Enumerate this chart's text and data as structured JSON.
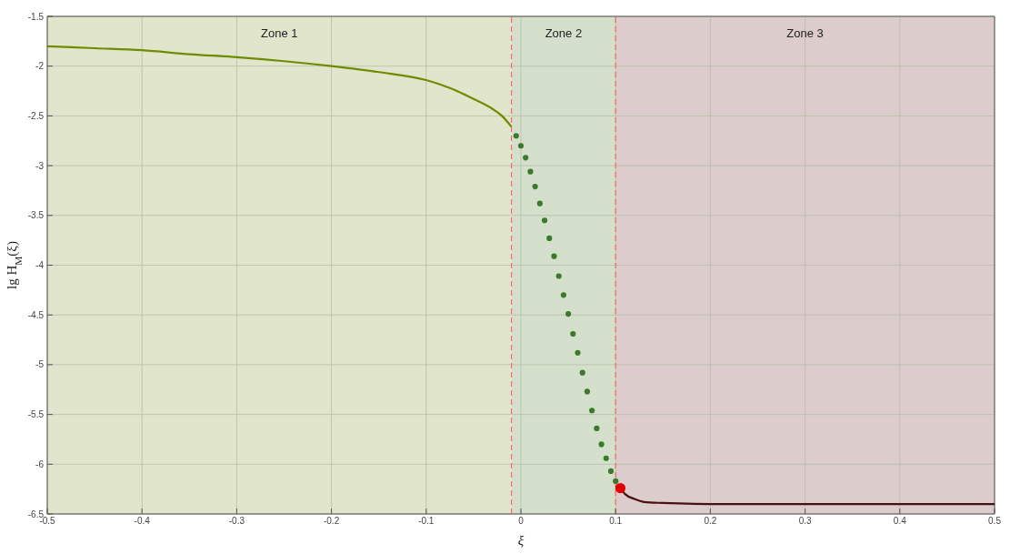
{
  "chart_data": {
    "type": "line",
    "xlabel": "ξ",
    "ylabel": "lg H$_{M}$(ξ)",
    "xlim": [
      -0.5,
      0.5
    ],
    "xticks": [
      -0.5,
      -0.4,
      -0.3,
      -0.2,
      -0.1,
      0,
      0.1,
      0.2,
      0.3,
      0.4,
      0.5
    ],
    "ylim": [
      -6.5,
      -1.5
    ],
    "yticks": [
      -6.5,
      -6,
      -5.5,
      -5,
      -4.5,
      -4,
      -3.5,
      -3,
      -2.5,
      -2,
      -1.5
    ],
    "grid": true,
    "series": [
      {
        "color": "#6f8c00",
        "marker": "none",
        "line_style": "solid",
        "x": [
          -0.5,
          -0.45,
          -0.4,
          -0.35,
          -0.3,
          -0.25,
          -0.2,
          -0.15,
          -0.1,
          -0.075,
          -0.05,
          -0.03,
          -0.02,
          -0.01
        ],
        "values": [
          -1.8,
          -1.82,
          -1.84,
          -1.88,
          -1.91,
          -1.95,
          -2.0,
          -2.06,
          -2.14,
          -2.22,
          -2.33,
          -2.43,
          -2.5,
          -2.61
        ]
      },
      {
        "type": "scatter",
        "color": "#3a7a2a",
        "marker": "circle",
        "x": [
          -0.005,
          0,
          0.005,
          0.01,
          0.015,
          0.02,
          0.025,
          0.03,
          0.035,
          0.04,
          0.045,
          0.05,
          0.055,
          0.06,
          0.065,
          0.07,
          0.075,
          0.08,
          0.085,
          0.09,
          0.095,
          0.1
        ],
        "values": [
          -2.7,
          -2.8,
          -2.92,
          -3.06,
          -3.21,
          -3.38,
          -3.55,
          -3.73,
          -3.91,
          -4.11,
          -4.3,
          -4.49,
          -4.69,
          -4.88,
          -5.08,
          -5.27,
          -5.46,
          -5.64,
          -5.8,
          -5.94,
          -6.07,
          -6.17
        ]
      },
      {
        "color": "#4a0f0f",
        "marker": "none",
        "line_style": "solid",
        "x": [
          0.105,
          0.11,
          0.12,
          0.13,
          0.15,
          0.2,
          0.3,
          0.4,
          0.5
        ],
        "values": [
          -6.24,
          -6.3,
          -6.35,
          -6.38,
          -6.39,
          -6.4,
          -6.4,
          -6.4,
          -6.4
        ]
      },
      {
        "type": "scatter",
        "color": "#e00000",
        "marker": "circle",
        "x": [
          0.105
        ],
        "values": [
          -6.24
        ]
      }
    ],
    "bands": [
      {
        "axis": "x",
        "from": -0.5,
        "to": -0.01,
        "label": "Zone 1",
        "color": "#e1e5cc"
      },
      {
        "axis": "x",
        "from": -0.01,
        "to": 0.1,
        "label": "Zone 2",
        "color": "#d4e0cc"
      },
      {
        "axis": "x",
        "from": 0.1,
        "to": 0.5,
        "label": "Zone 3",
        "color": "#dccccc"
      }
    ],
    "ref_lines": [
      {
        "axis": "x",
        "value": -0.01,
        "color": "#ff6666",
        "line_style": "dashed"
      },
      {
        "axis": "x",
        "value": 0.1,
        "color": "#ff6666",
        "line_style": "dashed"
      }
    ]
  }
}
